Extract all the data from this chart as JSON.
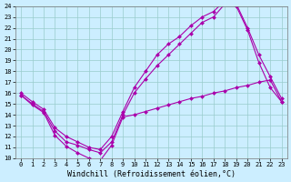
{
  "xlabel": "Windchill (Refroidissement éolien,°C)",
  "xlim": [
    -0.5,
    23.5
  ],
  "ylim": [
    10,
    24
  ],
  "xticks": [
    0,
    1,
    2,
    3,
    4,
    5,
    6,
    7,
    8,
    9,
    10,
    11,
    12,
    13,
    14,
    15,
    16,
    17,
    18,
    19,
    20,
    21,
    22,
    23
  ],
  "yticks": [
    10,
    11,
    12,
    13,
    14,
    15,
    16,
    17,
    18,
    19,
    20,
    21,
    22,
    23,
    24
  ],
  "bg_color": "#cceeff",
  "line_color": "#aa00aa",
  "grid_color": "#99cccc",
  "lines": [
    {
      "x": [
        0,
        1,
        2,
        3,
        4,
        5,
        6,
        7,
        8,
        9,
        10,
        11,
        12,
        13,
        14,
        15,
        16,
        17,
        18,
        19,
        20,
        21,
        22,
        23
      ],
      "y": [
        15.8,
        14.9,
        14.2,
        12.1,
        11.1,
        10.5,
        10.0,
        9.8,
        11.2,
        13.8,
        14.0,
        14.3,
        14.6,
        14.9,
        15.2,
        15.5,
        15.7,
        16.0,
        16.2,
        16.5,
        16.7,
        17.0,
        17.2,
        15.2
      ]
    },
    {
      "x": [
        0,
        1,
        2,
        3,
        4,
        5,
        6,
        7,
        8,
        9,
        10,
        11,
        12,
        13,
        14,
        15,
        16,
        17,
        18,
        19,
        20,
        21,
        22,
        23
      ],
      "y": [
        15.8,
        15.0,
        14.3,
        12.5,
        11.5,
        11.2,
        10.8,
        10.5,
        11.5,
        14.0,
        16.0,
        17.3,
        18.5,
        19.5,
        20.5,
        21.5,
        22.5,
        23.0,
        24.2,
        24.0,
        21.8,
        18.8,
        16.5,
        15.2
      ]
    },
    {
      "x": [
        0,
        1,
        2,
        3,
        4,
        5,
        6,
        7,
        8,
        9,
        10,
        11,
        12,
        13,
        14,
        15,
        16,
        17,
        18,
        19,
        20,
        21,
        22,
        23
      ],
      "y": [
        16.0,
        15.2,
        14.5,
        12.8,
        12.0,
        11.5,
        11.0,
        10.8,
        12.0,
        14.3,
        16.5,
        18.0,
        19.5,
        20.5,
        21.2,
        22.2,
        23.0,
        23.5,
        24.5,
        24.2,
        22.0,
        19.5,
        17.5,
        15.5
      ]
    }
  ],
  "font_size": 6,
  "tick_fontsize": 5,
  "marker": "D",
  "marker_size": 2.0,
  "linewidth": 0.8
}
